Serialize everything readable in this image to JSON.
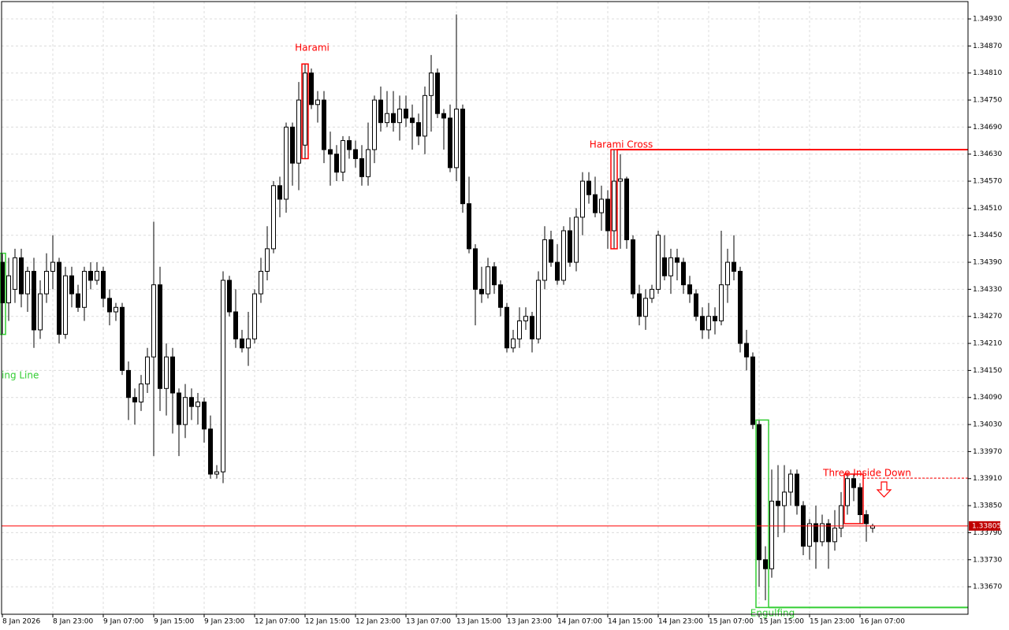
{
  "chart_data": {
    "type": "candlestick",
    "categories": [
      "8 Jan 2026",
      null,
      null,
      null,
      null,
      null,
      null,
      null,
      "8 Jan 23:00",
      null,
      null,
      null,
      null,
      null,
      null,
      null,
      "9 Jan 07:00",
      null,
      null,
      null,
      null,
      null,
      null,
      null,
      "9 Jan 15:00",
      null,
      null,
      null,
      null,
      null,
      null,
      null,
      "9 Jan 23:00",
      null,
      null,
      null,
      null,
      null,
      null,
      null,
      "12 Jan 07:00",
      null,
      null,
      null,
      null,
      null,
      null,
      null,
      "12 Jan 15:00",
      null,
      null,
      null,
      null,
      null,
      null,
      null,
      "12 Jan 23:00",
      null,
      null,
      null,
      null,
      null,
      null,
      null,
      "13 Jan 07:00",
      null,
      null,
      null,
      null,
      null,
      null,
      null,
      "13 Jan 15:00",
      null,
      null,
      null,
      null,
      null,
      null,
      null,
      "13 Jan 23:00",
      null,
      null,
      null,
      null,
      null,
      null,
      null,
      "14 Jan 07:00",
      null,
      null,
      null,
      null,
      null,
      null,
      null,
      "14 Jan 15:00",
      null,
      null,
      null,
      null,
      null,
      null,
      null,
      "14 Jan 23:00",
      null,
      null,
      null,
      null,
      null,
      null,
      null,
      "15 Jan 07:00",
      null,
      null,
      null,
      null,
      null,
      null,
      null,
      "15 Jan 15:00",
      null,
      null,
      null,
      null,
      null,
      null,
      null,
      "15 Jan 23:00",
      null,
      null,
      null,
      null,
      null,
      null,
      null,
      "16 Jan 07:00",
      null,
      null
    ],
    "open": [
      1.3439,
      1.343,
      1.3433,
      1.344,
      1.3432,
      1.3437,
      1.3424,
      1.3432,
      1.3437,
      1.3439,
      1.3423,
      1.3436,
      1.3432,
      1.3429,
      1.3437,
      1.3435,
      1.3437,
      1.3431,
      1.3428,
      1.3429,
      1.3415,
      1.3409,
      1.3408,
      1.3412,
      1.3418,
      1.3434,
      1.3411,
      1.3418,
      1.341,
      1.3403,
      1.3409,
      1.3407,
      1.3408,
      1.3402,
      1.3392,
      1.33925,
      1.3435,
      1.3428,
      1.3422,
      1.342,
      1.3422,
      1.3432,
      1.3437,
      1.3442,
      1.3456,
      1.3453,
      1.3469,
      1.3461,
      1.3465,
      1.3481,
      1.3474,
      1.3475,
      1.3464,
      1.3463,
      1.3459,
      1.3466,
      1.3464,
      1.3462,
      1.3458,
      1.3464,
      1.3475,
      1.347,
      1.3472,
      1.347,
      1.3473,
      1.3471,
      1.347,
      1.3467,
      1.3476,
      1.3481,
      1.3472,
      1.3471,
      1.346,
      1.3473,
      1.3452,
      1.3442,
      1.3433,
      1.3432,
      1.3438,
      1.3434,
      1.3429,
      1.342,
      1.3422,
      1.3426,
      1.3427,
      1.3422,
      1.3435,
      1.3444,
      1.3439,
      1.3435,
      1.3446,
      1.3439,
      1.3449,
      1.3457,
      1.3454,
      1.345,
      1.3453,
      1.3446,
      1.3457,
      1.34575,
      1.3444,
      1.3432,
      1.3427,
      1.3431,
      1.3433,
      1.344,
      1.3436,
      1.344,
      1.3439,
      1.3434,
      1.3432,
      1.3427,
      1.3424,
      1.3427,
      1.3426,
      1.3434,
      1.3439,
      1.3437,
      1.3421,
      1.3418,
      1.3403,
      1.3373,
      1.3371,
      1.3386,
      1.3385,
      1.3388,
      1.3392,
      1.3385,
      1.3376,
      1.3381,
      1.3377,
      1.3381,
      1.3377,
      1.338,
      1.3385,
      1.3391,
      1.3389,
      1.3383,
      1.338
    ],
    "high": [
      1.3441,
      1.344,
      1.3442,
      1.3442,
      1.3438,
      1.344,
      1.3435,
      1.3441,
      1.3445,
      1.344,
      1.3438,
      1.3438,
      1.3434,
      1.3438,
      1.3439,
      1.3439,
      1.3438,
      1.3433,
      1.343,
      1.343,
      1.3417,
      1.3411,
      1.3414,
      1.342,
      1.3448,
      1.3438,
      1.3421,
      1.342,
      1.3411,
      1.3412,
      1.3411,
      1.341,
      1.3409,
      1.3405,
      1.3394,
      1.3437,
      1.3436,
      1.3433,
      1.3424,
      1.3428,
      1.3433,
      1.344,
      1.3447,
      1.3457,
      1.3458,
      1.347,
      1.347,
      1.3479,
      1.3483,
      1.3482,
      1.3477,
      1.3477,
      1.3468,
      1.3465,
      1.3467,
      1.3467,
      1.3466,
      1.3465,
      1.347,
      1.3476,
      1.3478,
      1.3477,
      1.3477,
      1.3476,
      1.3476,
      1.3474,
      1.3472,
      1.3478,
      1.3485,
      1.3482,
      1.3473,
      1.3474,
      1.3494,
      1.3474,
      1.3458,
      1.3443,
      1.3438,
      1.344,
      1.3439,
      1.3435,
      1.343,
      1.3424,
      1.3429,
      1.3429,
      1.3428,
      1.3437,
      1.3447,
      1.3446,
      1.3443,
      1.3447,
      1.3449,
      1.3451,
      1.3459,
      1.3459,
      1.3458,
      1.3456,
      1.3455,
      1.3464,
      1.3463,
      1.3458,
      1.3445,
      1.3434,
      1.3433,
      1.3434,
      1.3446,
      1.3445,
      1.3442,
      1.3442,
      1.344,
      1.3436,
      1.3433,
      1.3429,
      1.343,
      1.3429,
      1.3446,
      1.3442,
      1.3445,
      1.3438,
      1.3424,
      1.3419,
      1.3404,
      1.3376,
      1.3393,
      1.3394,
      1.3394,
      1.3393,
      1.3393,
      1.3386,
      1.3382,
      1.3385,
      1.3383,
      1.3382,
      1.3384,
      1.3388,
      1.3392,
      1.3392,
      1.339,
      1.3384,
      1.3381
    ],
    "low": [
      1.3423,
      1.3426,
      1.343,
      1.3429,
      1.3428,
      1.342,
      1.3422,
      1.343,
      1.3433,
      1.3421,
      1.3422,
      1.3429,
      1.3428,
      1.3426,
      1.3433,
      1.3434,
      1.3429,
      1.3425,
      1.3426,
      1.3414,
      1.3404,
      1.3403,
      1.3406,
      1.341,
      1.3396,
      1.3406,
      1.3405,
      1.3401,
      1.3396,
      1.34,
      1.3404,
      1.3403,
      1.3399,
      1.3391,
      1.3391,
      1.339,
      1.3427,
      1.342,
      1.3419,
      1.3416,
      1.3421,
      1.343,
      1.3435,
      1.3441,
      1.3449,
      1.345,
      1.3456,
      1.3455,
      1.3462,
      1.3473,
      1.347,
      1.3461,
      1.3456,
      1.3457,
      1.3457,
      1.3462,
      1.346,
      1.3456,
      1.3456,
      1.3461,
      1.3468,
      1.3469,
      1.3468,
      1.3466,
      1.3469,
      1.3464,
      1.3465,
      1.3463,
      1.3468,
      1.3471,
      1.3464,
      1.3459,
      1.3457,
      1.345,
      1.3441,
      1.3425,
      1.343,
      1.3431,
      1.3432,
      1.3427,
      1.3419,
      1.3419,
      1.342,
      1.3424,
      1.3419,
      1.3421,
      1.3433,
      1.3438,
      1.3434,
      1.3434,
      1.3438,
      1.3437,
      1.3445,
      1.3452,
      1.3449,
      1.3446,
      1.3442,
      1.3442,
      1.3442,
      1.3442,
      1.3431,
      1.3425,
      1.3424,
      1.343,
      1.3432,
      1.3435,
      1.3432,
      1.3435,
      1.3432,
      1.343,
      1.3426,
      1.3422,
      1.3422,
      1.3423,
      1.3425,
      1.343,
      1.3435,
      1.3419,
      1.3415,
      1.3402,
      1.3367,
      1.3364,
      1.3369,
      1.3378,
      1.3379,
      1.3385,
      1.3383,
      1.3374,
      1.3373,
      1.3371,
      1.3376,
      1.3371,
      1.3375,
      1.3378,
      1.3383,
      1.3386,
      1.3381,
      1.3377,
      1.3379
    ],
    "close": [
      1.343,
      1.3436,
      1.344,
      1.3432,
      1.3437,
      1.3424,
      1.3432,
      1.3437,
      1.3439,
      1.3423,
      1.3436,
      1.3432,
      1.3429,
      1.3437,
      1.3435,
      1.3437,
      1.3431,
      1.3428,
      1.3429,
      1.3415,
      1.3409,
      1.3408,
      1.3412,
      1.3418,
      1.3434,
      1.3411,
      1.3418,
      1.341,
      1.3403,
      1.3409,
      1.3407,
      1.3408,
      1.3402,
      1.3392,
      1.33925,
      1.3435,
      1.3428,
      1.3422,
      1.342,
      1.3422,
      1.3432,
      1.3437,
      1.3442,
      1.3456,
      1.3453,
      1.3469,
      1.3461,
      1.3475,
      1.3481,
      1.3474,
      1.3475,
      1.3464,
      1.3463,
      1.3459,
      1.3466,
      1.3464,
      1.3462,
      1.3458,
      1.3464,
      1.3475,
      1.347,
      1.3472,
      1.347,
      1.3473,
      1.3471,
      1.347,
      1.3467,
      1.3476,
      1.3481,
      1.3472,
      1.3471,
      1.346,
      1.3473,
      1.3452,
      1.3442,
      1.3433,
      1.3432,
      1.3438,
      1.3434,
      1.3429,
      1.342,
      1.3422,
      1.3426,
      1.3427,
      1.3422,
      1.3435,
      1.3444,
      1.3439,
      1.3435,
      1.3446,
      1.3439,
      1.3449,
      1.3457,
      1.3454,
      1.345,
      1.3453,
      1.3446,
      1.3457,
      1.34575,
      1.3444,
      1.3432,
      1.3427,
      1.3431,
      1.3433,
      1.3445,
      1.3436,
      1.344,
      1.3439,
      1.3434,
      1.3432,
      1.3427,
      1.3424,
      1.3427,
      1.3426,
      1.3434,
      1.3439,
      1.3437,
      1.3421,
      1.3418,
      1.3403,
      1.3373,
      1.3371,
      1.3386,
      1.3385,
      1.3388,
      1.3392,
      1.3385,
      1.3376,
      1.3381,
      1.3377,
      1.3381,
      1.3377,
      1.338,
      1.3385,
      1.3391,
      1.3389,
      1.3383,
      1.3381,
      1.33805
    ],
    "bull_color": "#ffffff",
    "bear_color": "#000000",
    "ylim": [
      1.33609,
      1.34972
    ],
    "yticks": [
      {
        "value": 1.3493,
        "label": "1.34930"
      },
      {
        "value": 1.3487,
        "label": "1.34870"
      },
      {
        "value": 1.3481,
        "label": "1.34810"
      },
      {
        "value": 1.3475,
        "label": "1.34750"
      },
      {
        "value": 1.3469,
        "label": "1.34690"
      },
      {
        "value": 1.3463,
        "label": "1.34630"
      },
      {
        "value": 1.3457,
        "label": "1.34570"
      },
      {
        "value": 1.3451,
        "label": "1.34510"
      },
      {
        "value": 1.3445,
        "label": "1.34450"
      },
      {
        "value": 1.3439,
        "label": "1.34390"
      },
      {
        "value": 1.3433,
        "label": "1.34330"
      },
      {
        "value": 1.3427,
        "label": "1.34270"
      },
      {
        "value": 1.3421,
        "label": "1.34210"
      },
      {
        "value": 1.3415,
        "label": "1.34150"
      },
      {
        "value": 1.3409,
        "label": "1.34090"
      },
      {
        "value": 1.3403,
        "label": "1.34030"
      },
      {
        "value": 1.3397,
        "label": "1.33970"
      },
      {
        "value": 1.3391,
        "label": "1.33910"
      },
      {
        "value": 1.3385,
        "label": "1.33850"
      },
      {
        "value": 1.3379,
        "label": "1.33790"
      },
      {
        "value": 1.3373,
        "label": "1.33730"
      },
      {
        "value": 1.3367,
        "label": "1.33670"
      }
    ],
    "grid": true,
    "current_price": {
      "value": 1.33805,
      "label": "1.33805",
      "color": "#ff0000"
    },
    "patterns": [
      {
        "label": "ing Line",
        "color": "#32cd32"
      },
      {
        "label": "Harami",
        "color": "#ff0000"
      },
      {
        "label": "Harami Cross",
        "color": "#ff0000",
        "level": 1.3464
      },
      {
        "label": "Three Inside Down",
        "color": "#ff0000",
        "level": 1.33911
      },
      {
        "label": "Engulfing",
        "color": "#32cd32",
        "level": 1.33624
      }
    ]
  }
}
